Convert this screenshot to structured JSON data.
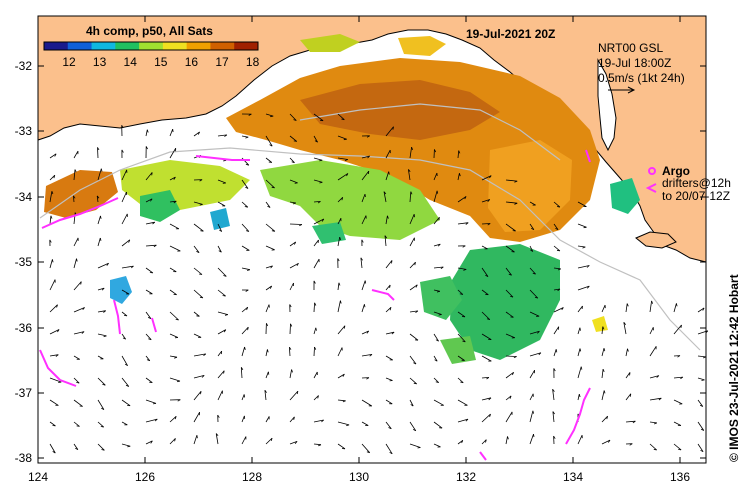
{
  "title": "19-Jul-2021 20Z",
  "colorbar": {
    "label": "4h comp, p50, All Sats",
    "ticks": [
      "12",
      "13",
      "14",
      "15",
      "16",
      "17",
      "18"
    ],
    "colors": [
      "#1a1a8c",
      "#1060d8",
      "#10b8e0",
      "#20c060",
      "#a0e030",
      "#f0e020",
      "#f0a000",
      "#d06000",
      "#a02000"
    ]
  },
  "legend_current": {
    "line1": "NRT00 GSL",
    "line2": "19-Jul 18:00Z",
    "line3": "0.5m/s (1kt 24h)"
  },
  "legend_argo": {
    "label": "Argo",
    "drifters_line1": "drifters@12h",
    "drifters_line2": "to 20/07-12Z"
  },
  "credit": "© IMOS 23-Jul-2021 12:42 Hobart",
  "axes": {
    "x_labels": [
      "124",
      "126",
      "128",
      "130",
      "132",
      "134",
      "136"
    ],
    "y_labels": [
      "-32",
      "-33",
      "-34",
      "-35",
      "-36",
      "-37",
      "-38"
    ],
    "xlim": [
      124,
      136.5
    ],
    "ylim": [
      -38.15,
      -31.3
    ]
  },
  "colors": {
    "land": "#fbc08c",
    "drifter": "#ff30ff",
    "frame": "#000000"
  }
}
